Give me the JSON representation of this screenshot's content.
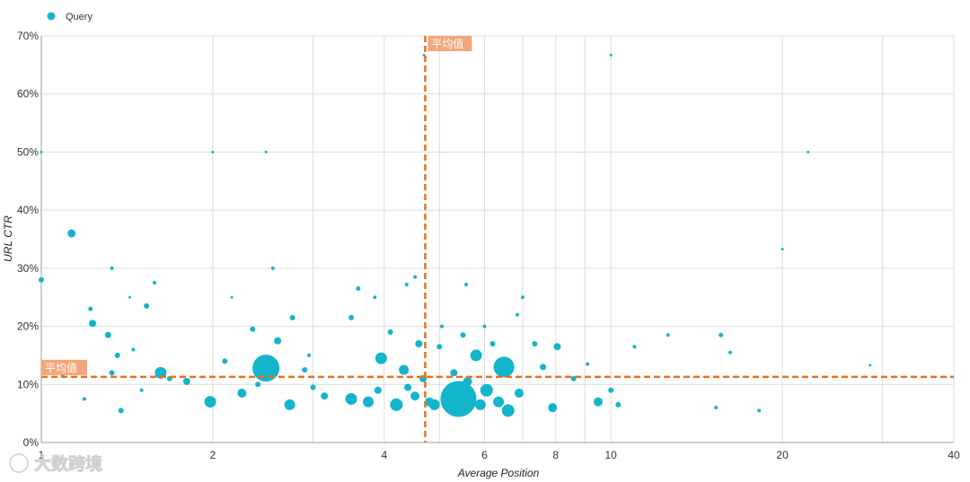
{
  "chart_data": {
    "type": "scatter",
    "xlabel": "Average Position",
    "ylabel": "URL CTR",
    "x_scale": "log",
    "xlim": [
      1,
      40
    ],
    "ylim": [
      0,
      70
    ],
    "x_ticks": [
      1,
      2,
      4,
      6,
      8,
      10,
      20,
      40
    ],
    "x_tick_labels": [
      "1",
      "2",
      "4",
      "6",
      "8",
      "10",
      "20",
      "40"
    ],
    "y_ticks": [
      0,
      10,
      20,
      30,
      40,
      50,
      60,
      70
    ],
    "y_tick_labels": [
      "0%",
      "10%",
      "20%",
      "30%",
      "40%",
      "50%",
      "60%",
      "70%"
    ],
    "grid": true,
    "legend": {
      "position": "top-left",
      "entries": [
        "Query"
      ]
    },
    "series": [
      {
        "name": "Query",
        "color": "#12b5cb",
        "points": [
          {
            "x": 1.0,
            "y": 50,
            "s": 1.5
          },
          {
            "x": 1.0,
            "y": 28,
            "s": 3
          },
          {
            "x": 1.13,
            "y": 36,
            "s": 4.5
          },
          {
            "x": 1.33,
            "y": 30,
            "s": 2
          },
          {
            "x": 1.43,
            "y": 25,
            "s": 1.5
          },
          {
            "x": 1.22,
            "y": 23,
            "s": 2.5
          },
          {
            "x": 1.23,
            "y": 20.5,
            "s": 4
          },
          {
            "x": 1.31,
            "y": 18.5,
            "s": 3.5
          },
          {
            "x": 1.36,
            "y": 15,
            "s": 3
          },
          {
            "x": 1.58,
            "y": 27.5,
            "s": 2
          },
          {
            "x": 1.53,
            "y": 23.5,
            "s": 3
          },
          {
            "x": 1.62,
            "y": 12,
            "s": 6.5
          },
          {
            "x": 1.68,
            "y": 11,
            "s": 3
          },
          {
            "x": 1.8,
            "y": 10.5,
            "s": 4
          },
          {
            "x": 1.98,
            "y": 7,
            "s": 6.5
          },
          {
            "x": 1.33,
            "y": 12,
            "s": 3
          },
          {
            "x": 1.45,
            "y": 16,
            "s": 2
          },
          {
            "x": 1.5,
            "y": 9,
            "s": 2
          },
          {
            "x": 1.38,
            "y": 5.5,
            "s": 3
          },
          {
            "x": 1.19,
            "y": 7.5,
            "s": 2
          },
          {
            "x": 1.09,
            "y": 11.5,
            "s": 2
          },
          {
            "x": 2.0,
            "y": 50,
            "s": 1.5
          },
          {
            "x": 2.48,
            "y": 50,
            "s": 1.5
          },
          {
            "x": 2.55,
            "y": 30,
            "s": 2
          },
          {
            "x": 2.16,
            "y": 25,
            "s": 1.5
          },
          {
            "x": 2.48,
            "y": 12.8,
            "s": 15
          },
          {
            "x": 2.25,
            "y": 8.5,
            "s": 5
          },
          {
            "x": 2.73,
            "y": 6.5,
            "s": 6
          },
          {
            "x": 2.76,
            "y": 21.5,
            "s": 3
          },
          {
            "x": 2.6,
            "y": 17.5,
            "s": 4
          },
          {
            "x": 2.35,
            "y": 19.5,
            "s": 3
          },
          {
            "x": 2.1,
            "y": 14,
            "s": 3
          },
          {
            "x": 2.4,
            "y": 10,
            "s": 3
          },
          {
            "x": 2.9,
            "y": 12.5,
            "s": 3
          },
          {
            "x": 3.0,
            "y": 9.5,
            "s": 3
          },
          {
            "x": 3.14,
            "y": 8,
            "s": 4
          },
          {
            "x": 2.95,
            "y": 15,
            "s": 2
          },
          {
            "x": 3.5,
            "y": 21.5,
            "s": 3
          },
          {
            "x": 3.5,
            "y": 7.5,
            "s": 6.5
          },
          {
            "x": 3.6,
            "y": 26.5,
            "s": 2.5
          },
          {
            "x": 3.75,
            "y": 7,
            "s": 6
          },
          {
            "x": 3.85,
            "y": 25,
            "s": 2
          },
          {
            "x": 3.95,
            "y": 14.5,
            "s": 6.5
          },
          {
            "x": 3.9,
            "y": 9,
            "s": 4
          },
          {
            "x": 4.1,
            "y": 19,
            "s": 3
          },
          {
            "x": 4.2,
            "y": 6.5,
            "s": 7
          },
          {
            "x": 4.33,
            "y": 12.5,
            "s": 5.5
          },
          {
            "x": 4.38,
            "y": 27.2,
            "s": 2
          },
          {
            "x": 4.4,
            "y": 9.5,
            "s": 4
          },
          {
            "x": 4.53,
            "y": 28.5,
            "s": 2
          },
          {
            "x": 4.6,
            "y": 17,
            "s": 4
          },
          {
            "x": 4.7,
            "y": 66.7,
            "s": 1.5
          },
          {
            "x": 4.53,
            "y": 8,
            "s": 5
          },
          {
            "x": 4.68,
            "y": 11,
            "s": 4
          },
          {
            "x": 4.8,
            "y": 7,
            "s": 5
          },
          {
            "x": 4.9,
            "y": 6.5,
            "s": 6
          },
          {
            "x": 5.05,
            "y": 20,
            "s": 2
          },
          {
            "x": 5.0,
            "y": 16.5,
            "s": 3
          },
          {
            "x": 5.3,
            "y": 12,
            "s": 4
          },
          {
            "x": 5.4,
            "y": 7.5,
            "s": 20
          },
          {
            "x": 5.5,
            "y": 18.5,
            "s": 3
          },
          {
            "x": 5.57,
            "y": 27.2,
            "s": 2
          },
          {
            "x": 5.6,
            "y": 10.5,
            "s": 5
          },
          {
            "x": 5.8,
            "y": 15,
            "s": 6.5
          },
          {
            "x": 5.9,
            "y": 6.5,
            "s": 6
          },
          {
            "x": 6.05,
            "y": 9,
            "s": 7
          },
          {
            "x": 6.0,
            "y": 20,
            "s": 2
          },
          {
            "x": 6.2,
            "y": 17,
            "s": 3
          },
          {
            "x": 6.49,
            "y": 13,
            "s": 11.5
          },
          {
            "x": 6.35,
            "y": 7,
            "s": 6
          },
          {
            "x": 6.6,
            "y": 5.5,
            "s": 7
          },
          {
            "x": 6.85,
            "y": 22,
            "s": 2
          },
          {
            "x": 6.9,
            "y": 8.5,
            "s": 5
          },
          {
            "x": 7.0,
            "y": 25,
            "s": 2
          },
          {
            "x": 7.35,
            "y": 17,
            "s": 3
          },
          {
            "x": 7.6,
            "y": 13,
            "s": 3.5
          },
          {
            "x": 8.05,
            "y": 16.5,
            "s": 4
          },
          {
            "x": 7.9,
            "y": 6,
            "s": 5
          },
          {
            "x": 8.6,
            "y": 11,
            "s": 3
          },
          {
            "x": 9.1,
            "y": 13.5,
            "s": 2
          },
          {
            "x": 9.5,
            "y": 7,
            "s": 5
          },
          {
            "x": 10.0,
            "y": 66.7,
            "s": 1.5
          },
          {
            "x": 10.0,
            "y": 9,
            "s": 3
          },
          {
            "x": 10.3,
            "y": 6.5,
            "s": 3
          },
          {
            "x": 11.0,
            "y": 16.5,
            "s": 2
          },
          {
            "x": 12.6,
            "y": 18.5,
            "s": 2
          },
          {
            "x": 15.3,
            "y": 6,
            "s": 2
          },
          {
            "x": 15.6,
            "y": 18.5,
            "s": 2.5
          },
          {
            "x": 16.2,
            "y": 15.5,
            "s": 2
          },
          {
            "x": 18.2,
            "y": 5.5,
            "s": 2
          },
          {
            "x": 20.0,
            "y": 33.3,
            "s": 1.5
          },
          {
            "x": 22.2,
            "y": 50,
            "s": 1.5
          },
          {
            "x": 28.5,
            "y": 13.3,
            "s": 1.5
          }
        ]
      }
    ],
    "reference_lines": [
      {
        "axis": "x",
        "value": 4.72,
        "label": "平均值"
      },
      {
        "axis": "y",
        "value": 11.3,
        "label": "平均值"
      }
    ]
  },
  "watermark": {
    "text": "大数跨境"
  }
}
